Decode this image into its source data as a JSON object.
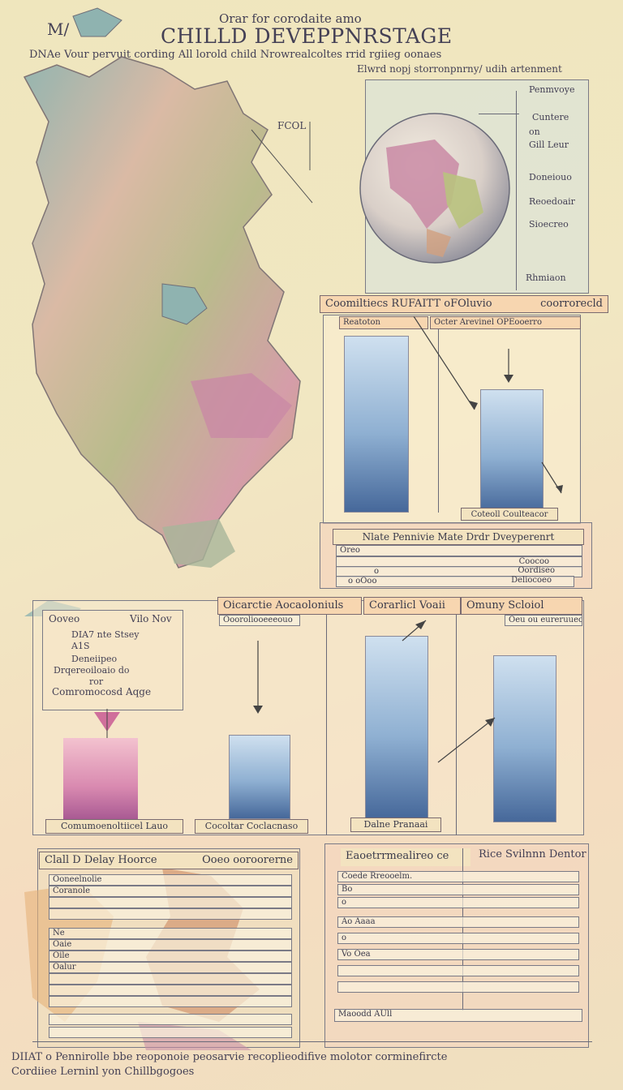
{
  "header": {
    "title_small": "Orar for corodaite amo",
    "title": "CHILLD DEVEPPNRSTAGE",
    "corner": "M/",
    "subtitle_1": "DNAe Vour pervuit cording All lorold child Nrowrealcoltes rrid rgiieg oonaes",
    "subtitle_2": "Elwrd nopj storronpnrny/ udih artenment"
  },
  "map_labels": {
    "fcol": "FCOL"
  },
  "globe_panel": {
    "labels": [
      "Penmvoye",
      "Cuntere",
      "on",
      "Gill Leur",
      "Doneiouo",
      "Reoedoair",
      "Sioecreo",
      "Rhmiaon"
    ]
  },
  "chart_top": {
    "header": "Coomiltiecs RUFAITT oFOluvio",
    "header_right": "coorrorecld",
    "tab_left": "Reatoton",
    "tab_right": "Octer Arevinel OPEooerro",
    "button": "Coteoll Coulteacor"
  },
  "panel_mid": {
    "header": "Nlate Pennivie Mate Drdr Dveyperenrt",
    "rows": [
      "Oreo",
      "Coocoo",
      "o",
      "Oordiseo",
      "o oOoo",
      "Deliocoeo"
    ]
  },
  "info_box": {
    "head_left": "Ooveo",
    "head_right": "Vilo Nov",
    "lines": [
      "DIA7 nte Stsey",
      "A1S",
      "Deneiipeo",
      "Drqereoiloaio do",
      "ror"
    ],
    "footer": "Comromocosd Aqge"
  },
  "chart_bottom": {
    "tabs": [
      "Oicarctie Aocaoloniuls",
      "Corarlicl Voaii",
      "Omuny Scloiol"
    ],
    "sub_left": "Oooroliooeeeouo",
    "sub_right": "Oeu ou eureruueo",
    "buttons": [
      "Comumoenoltiicel Lauo",
      "Cocoltar Coclacnaso",
      "Dalne Pranaai"
    ]
  },
  "bottom_left": {
    "header": "Clall D Delay Hoorce",
    "header_right": "Ooeo ooroorerne",
    "rows": [
      "Ooneelnolie",
      "Coranole",
      "Ne",
      "Oaie",
      "Oile",
      "Oalur"
    ]
  },
  "bottom_right": {
    "header": "Eaoetrrmealireo ce",
    "header_right": "Rice Svilnnn Dentor",
    "rows": [
      "Coede Rreooelm.",
      "Bo",
      "o",
      "Ao Aaaa",
      "o",
      "Vo Oea"
    ],
    "footer": "Maoodd AUll"
  },
  "footer": {
    "line_1": "DIIAT o Pennirolle bbe reoponoie peosarvie recoplieodifive molotor corminefircte",
    "line_2": "Cordiiee Lerninl yon Chillbgogoes"
  },
  "colors": {
    "accent": "#f7d6b0",
    "bar_blue": "#46689a",
    "bar_pink": "#a95a93"
  }
}
